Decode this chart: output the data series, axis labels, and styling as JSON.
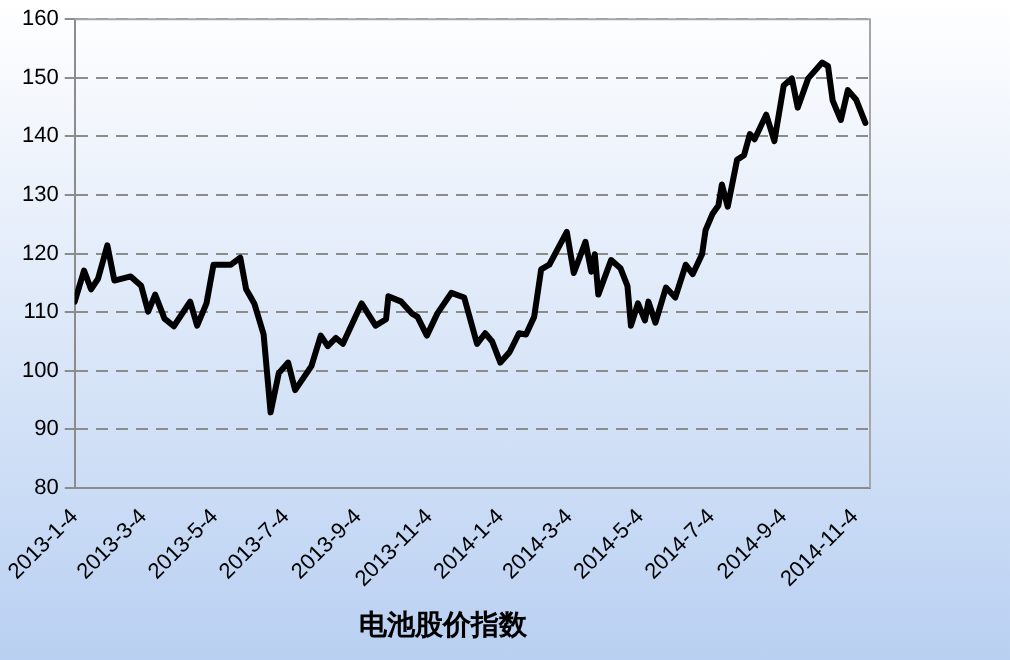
{
  "chart_data": {
    "type": "line",
    "title": "电池股价指数",
    "x": [
      "2013-01-04",
      "2013-01-12",
      "2013-01-18",
      "2013-01-24",
      "2013-02-01",
      "2013-02-07",
      "2013-02-21",
      "2013-03-02",
      "2013-03-08",
      "2013-03-14",
      "2013-03-22",
      "2013-03-30",
      "2013-04-13",
      "2013-04-19",
      "2013-04-27",
      "2013-05-03",
      "2013-05-18",
      "2013-05-26",
      "2013-05-31",
      "2013-06-07",
      "2013-06-15",
      "2013-06-21",
      "2013-06-28",
      "2013-07-06",
      "2013-07-12",
      "2013-07-26",
      "2013-08-03",
      "2013-08-09",
      "2013-08-16",
      "2013-08-22",
      "2013-09-07",
      "2013-09-19",
      "2013-09-28",
      "2013-09-30",
      "2013-10-11",
      "2013-10-20",
      "2013-10-25",
      "2013-11-02",
      "2013-11-11",
      "2013-11-23",
      "2013-12-04",
      "2013-12-15",
      "2013-12-22",
      "2013-12-28",
      "2014-01-04",
      "2014-01-12",
      "2014-01-20",
      "2014-01-26",
      "2014-02-02",
      "2014-02-08",
      "2014-02-15",
      "2014-03-02",
      "2014-03-08",
      "2014-03-18",
      "2014-03-23",
      "2014-03-26",
      "2014-03-29",
      "2014-04-09",
      "2014-04-17",
      "2014-04-23",
      "2014-04-26",
      "2014-05-02",
      "2014-05-08",
      "2014-05-11",
      "2014-05-17",
      "2014-05-26",
      "2014-06-03",
      "2014-06-12",
      "2014-06-18",
      "2014-06-26",
      "2014-06-29",
      "2014-07-05",
      "2014-07-10",
      "2014-07-13",
      "2014-07-18",
      "2014-07-26",
      "2014-08-01",
      "2014-08-06",
      "2014-08-10",
      "2014-08-20",
      "2014-08-27",
      "2014-09-04",
      "2014-09-11",
      "2014-09-16",
      "2014-09-25",
      "2014-10-07",
      "2014-10-12",
      "2014-10-16",
      "2014-10-23",
      "2014-10-29",
      "2014-11-05",
      "2014-11-13"
    ],
    "series": [
      {
        "color": "#000000",
        "values": [
          111.8,
          117.1,
          113.9,
          115.7,
          121.4,
          115.4,
          116.1,
          114.5,
          110.1,
          113,
          108.9,
          107.6,
          111.8,
          107.7,
          111.5,
          118.1,
          118.1,
          119.3,
          113.9,
          111.5,
          106.2,
          92.9,
          99.6,
          101.4,
          96.7,
          100.8,
          106,
          104.2,
          105.6,
          104.6,
          111.5,
          107.7,
          108.8,
          112.7,
          111.8,
          109.8,
          109.2,
          106,
          109.8,
          113.3,
          112.5,
          104.6,
          106.4,
          105,
          101.4,
          103.2,
          106.4,
          106.2,
          109.2,
          117.3,
          118.1,
          123.7,
          116.7,
          122,
          116.9,
          119.9,
          113,
          118.9,
          117.5,
          114.5,
          107.7,
          111.5,
          108.6,
          111.8,
          108.2,
          114.2,
          112.5,
          118.1,
          116.5,
          119.9,
          124,
          126.8,
          128.2,
          131.8,
          128,
          136,
          136.8,
          140.4,
          139.5,
          143.7,
          139.2,
          148.7,
          149.9,
          144.9,
          149.9,
          152.6,
          152,
          146.1,
          142.8,
          147.9,
          146.3,
          142.3
        ]
      }
    ],
    "xlim": [
      "2013-01-04",
      "2014-11-17"
    ],
    "xticks": [
      {
        "value": "2013-01-04",
        "label": "2013-1-4"
      },
      {
        "value": "2013-03-04",
        "label": "2013-3-4"
      },
      {
        "value": "2013-05-04",
        "label": "2013-5-4"
      },
      {
        "value": "2013-07-04",
        "label": "2013-7-4"
      },
      {
        "value": "2013-09-04",
        "label": "2013-9-4"
      },
      {
        "value": "2013-11-04",
        "label": "2013-11-4"
      },
      {
        "value": "2014-01-04",
        "label": "2014-1-4"
      },
      {
        "value": "2014-03-04",
        "label": "2014-3-4"
      },
      {
        "value": "2014-05-04",
        "label": "2014-5-4"
      },
      {
        "value": "2014-07-04",
        "label": "2014-7-4"
      },
      {
        "value": "2014-09-04",
        "label": "2014-9-4"
      },
      {
        "value": "2014-11-04",
        "label": "2014-11-4"
      }
    ],
    "ylim": [
      80,
      160
    ],
    "yticks": [
      80,
      90,
      100,
      110,
      120,
      130,
      140,
      150,
      160
    ],
    "grid": "y",
    "legend": false,
    "marker": "none",
    "line_style": "solid"
  }
}
